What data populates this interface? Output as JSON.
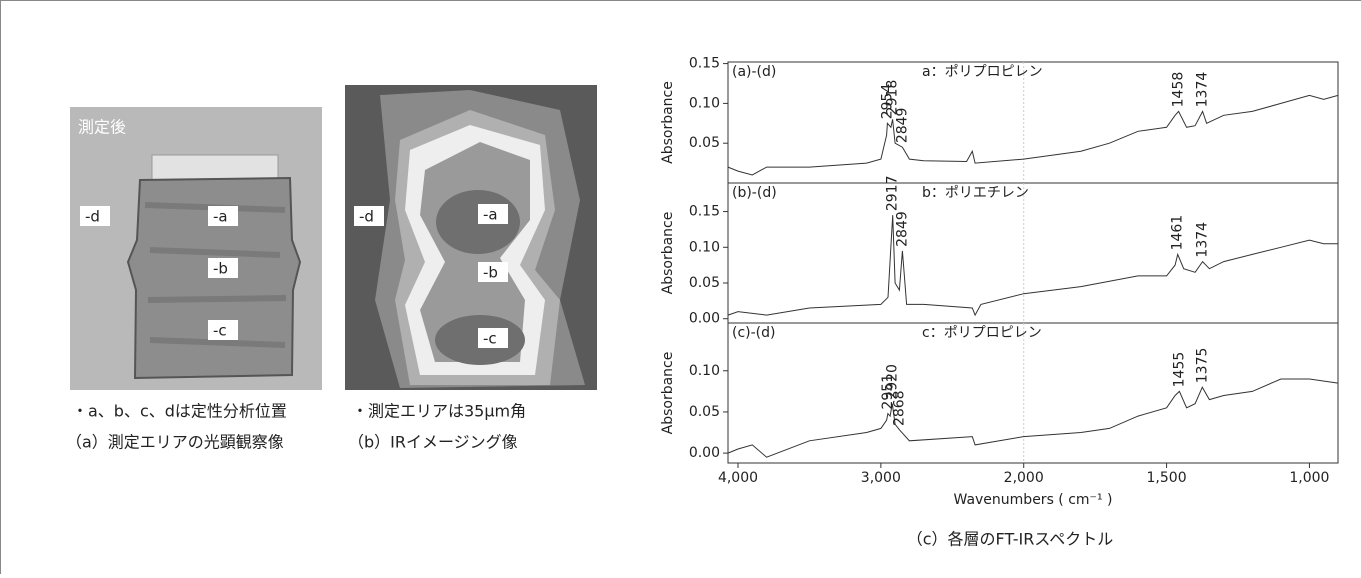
{
  "figure_a": {
    "label": "測定後",
    "markers": [
      "-d",
      "-a",
      "-b",
      "-c"
    ],
    "note": "・a、b、c、dは定性分析位置",
    "caption": "（a）測定エリアの光顕観察像"
  },
  "figure_b": {
    "markers": [
      "-d",
      "-a",
      "-b",
      "-c"
    ],
    "note": "・測定エリアは35μm角",
    "caption": "（b）IRイメージング像"
  },
  "caption": "（c）各層のFT-IRスペクトル",
  "chart_data": [
    {
      "type": "line",
      "label": "(a)-(d)",
      "title": "a：ポリプロピレン",
      "y_label": "Absorbance",
      "color": "#333333",
      "x": [
        4070,
        4000,
        3900,
        3800,
        3500,
        3100,
        3000,
        2960,
        2954,
        2930,
        2918,
        2900,
        2849,
        2800,
        2700,
        2400,
        2360,
        2340,
        2000,
        1800,
        1700,
        1600,
        1500,
        1470,
        1458,
        1430,
        1400,
        1374,
        1360,
        1300,
        1200,
        1100,
        1000,
        950,
        900
      ],
      "values": [
        0.02,
        0.015,
        0.01,
        0.02,
        0.02,
        0.025,
        0.03,
        0.06,
        0.075,
        0.07,
        0.08,
        0.05,
        0.045,
        0.03,
        0.028,
        0.027,
        0.04,
        0.025,
        0.03,
        0.04,
        0.05,
        0.065,
        0.07,
        0.085,
        0.09,
        0.07,
        0.072,
        0.09,
        0.075,
        0.085,
        0.09,
        0.1,
        0.11,
        0.105,
        0.11
      ],
      "peaks": [
        2954,
        2918,
        2849,
        1458,
        1374
      ],
      "xlim": [
        4070,
        900
      ],
      "x_scale_break": 2000,
      "ylim": [
        0,
        0.152
      ],
      "yticks": [
        0.05,
        {
          "value": 0.1,
          "label": "0.10"
        },
        0.15
      ]
    },
    {
      "type": "line",
      "label": "(b)-(d)",
      "title": "b：ポリエチレン",
      "y_label": "Absorbance",
      "color": "#333333",
      "x": [
        4070,
        4000,
        3800,
        3500,
        3000,
        2950,
        2917,
        2900,
        2870,
        2849,
        2820,
        2700,
        2360,
        2340,
        2300,
        2000,
        1800,
        1600,
        1500,
        1470,
        1461,
        1440,
        1400,
        1374,
        1350,
        1300,
        1200,
        1100,
        1000,
        950,
        900
      ],
      "values": [
        0.005,
        0.01,
        0.005,
        0.015,
        0.02,
        0.03,
        0.145,
        0.05,
        0.04,
        0.095,
        0.02,
        0.02,
        0.015,
        0.005,
        0.02,
        0.035,
        0.045,
        0.06,
        0.06,
        0.075,
        0.09,
        0.07,
        0.065,
        0.08,
        0.07,
        0.08,
        0.09,
        0.1,
        0.11,
        0.105,
        0.105
      ],
      "peaks": [
        2917,
        2849,
        1461,
        1374
      ],
      "xlim": [
        4070,
        900
      ],
      "x_scale_break": 2000,
      "ylim": [
        -0.006,
        0.19
      ],
      "yticks": [
        {
          "value": 0,
          "label": "0.00"
        },
        0.05,
        {
          "value": 0.1,
          "label": "0.10"
        },
        0.15
      ]
    },
    {
      "type": "line",
      "label": "(c)-(d)",
      "title": "c：ポリプロピレン",
      "y_label": "Absorbance",
      "x_label": "Wavenumbers ( cm⁻¹ )",
      "color": "#333333",
      "x": [
        4070,
        4000,
        3900,
        3800,
        3500,
        3100,
        3000,
        2960,
        2951,
        2935,
        2920,
        2900,
        2868,
        2800,
        2360,
        2340,
        2000,
        1800,
        1700,
        1600,
        1500,
        1470,
        1455,
        1430,
        1400,
        1375,
        1350,
        1300,
        1200,
        1100,
        1000,
        900
      ],
      "values": [
        0,
        0.005,
        0.01,
        -0.005,
        0.015,
        0.025,
        0.03,
        0.04,
        0.048,
        0.045,
        0.06,
        0.035,
        0.028,
        0.015,
        0.02,
        0.01,
        0.02,
        0.025,
        0.03,
        0.045,
        0.055,
        0.07,
        0.075,
        0.055,
        0.06,
        0.08,
        0.065,
        0.07,
        0.075,
        0.09,
        0.09,
        0.085
      ],
      "peaks": [
        2951,
        2920,
        2868,
        1455,
        1375
      ],
      "xlim": [
        4070,
        900
      ],
      "x_scale_break": 2000,
      "ylim": [
        -0.012,
        0.158
      ],
      "yticks": [
        {
          "value": 0,
          "label": "0.00"
        },
        0.05,
        {
          "value": 0.1,
          "label": "0.10"
        }
      ],
      "xticks": [
        {
          "value": 4000,
          "label": "4,000"
        },
        {
          "value": 3000,
          "label": "3,000"
        },
        {
          "value": 2000,
          "label": "2,000"
        },
        {
          "value": 1500,
          "label": "1,500"
        },
        {
          "value": 1000,
          "label": "1,000"
        }
      ]
    }
  ]
}
